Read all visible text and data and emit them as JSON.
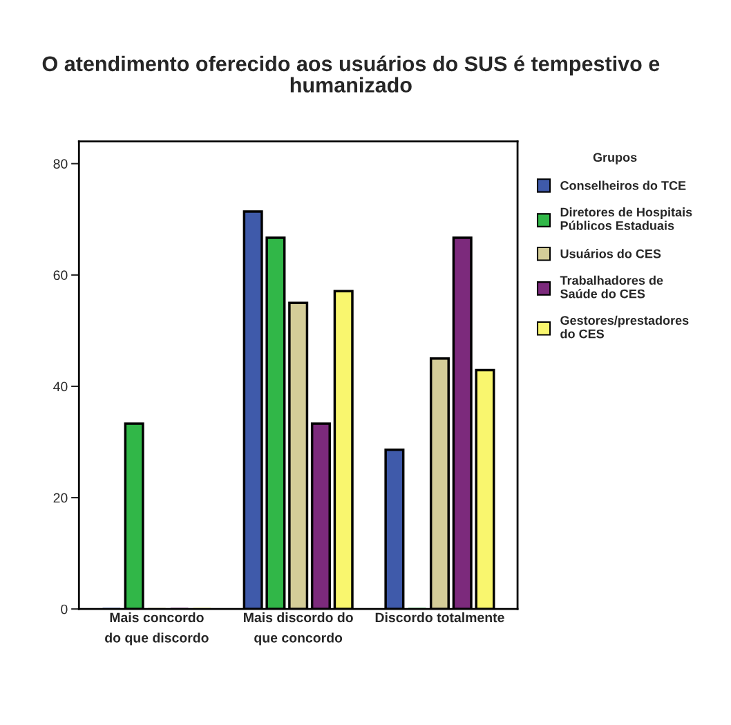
{
  "chart_data": {
    "type": "bar",
    "title": "O atendimento oferecido aos usuários do SUS é tempestivo e\nhumanizado",
    "categories": [
      "Mais concordo\ndo que discordo",
      "Mais discordo do\nque concordo",
      "Discordo totalmente"
    ],
    "series": [
      {
        "name": "Conselheiros do TCE",
        "color": "#3f5aaa",
        "values": [
          0,
          71.4,
          28.6
        ]
      },
      {
        "name": "Diretores de Hospitais\nPúblicos Estaduais",
        "color": "#31b748",
        "values": [
          33.3,
          66.7,
          0
        ]
      },
      {
        "name": "Usuários do CES",
        "color": "#d4cd98",
        "values": [
          0,
          55.0,
          45.0
        ]
      },
      {
        "name": "Trabalhadores de\nSaúde do CES",
        "color": "#7c2a7c",
        "values": [
          0,
          33.3,
          66.7
        ]
      },
      {
        "name": "Gestores/prestadores\ndo CES",
        "color": "#f9f66e",
        "values": [
          0,
          57.1,
          42.9
        ]
      }
    ],
    "legend_title": "Grupos",
    "legend": "right",
    "ylim": [
      0,
      84
    ],
    "yticks": [
      0,
      20,
      40,
      60,
      80
    ],
    "grid": false
  }
}
